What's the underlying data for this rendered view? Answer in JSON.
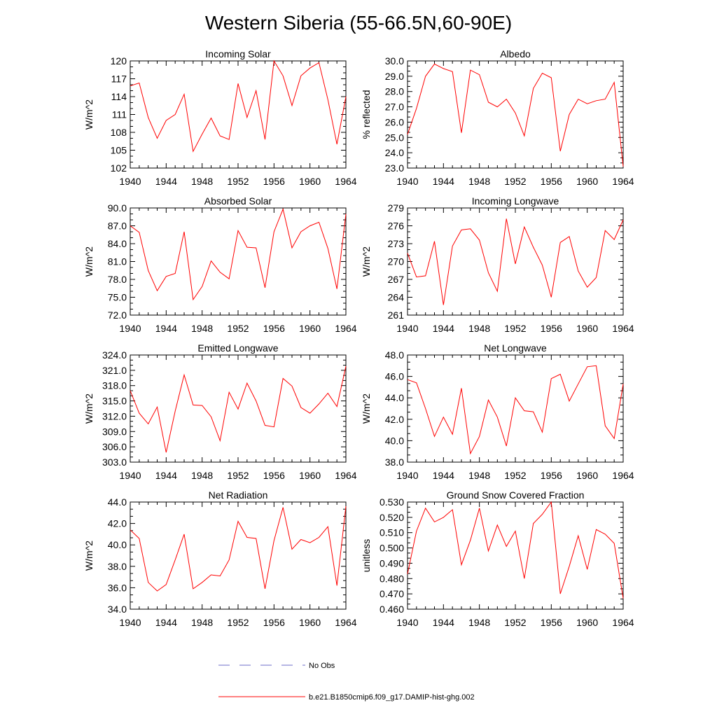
{
  "figure": {
    "title": "Western Siberia (55-66.5N,60-90E)",
    "legend": [
      {
        "label": "No Obs",
        "color": "#6c6cc8",
        "dashed": true
      },
      {
        "label": "b.e21.B1850cmip6.f09_g17.DAMIP-hist-ghg.002",
        "color": "#ff0000",
        "dashed": false
      }
    ]
  },
  "chart_data": [
    {
      "type": "line",
      "title": "Incoming Solar",
      "ylabel": "W/m^2",
      "xlim": [
        1940,
        1964
      ],
      "ylim": [
        102,
        120
      ],
      "xticks": [
        "1940",
        "1944",
        "1948",
        "1952",
        "1956",
        "1960",
        "1964"
      ],
      "yticks": [
        "102",
        "105",
        "108",
        "111",
        "114",
        "117",
        "120"
      ],
      "series": [
        {
          "name": "b.e21.B1850cmip6.f09_g17.DAMIP-hist-ghg.002",
          "x": [
            1940,
            1941,
            1942,
            1943,
            1944,
            1945,
            1946,
            1947,
            1948,
            1949,
            1950,
            1951,
            1952,
            1953,
            1954,
            1955,
            1956,
            1957,
            1958,
            1959,
            1960,
            1961,
            1962,
            1963,
            1964
          ],
          "values": [
            115.8,
            116.3,
            110.5,
            107.0,
            110.0,
            111.0,
            114.4,
            104.8,
            107.7,
            110.4,
            107.4,
            106.8,
            116.2,
            110.5,
            115.0,
            106.8,
            120.0,
            117.5,
            112.5,
            117.5,
            118.8,
            119.7,
            113.5,
            106.0,
            114.0
          ]
        }
      ]
    },
    {
      "type": "line",
      "title": "Albedo",
      "ylabel": "% reflected",
      "xlim": [
        1940,
        1964
      ],
      "ylim": [
        23.0,
        30.0
      ],
      "xticks": [
        "1940",
        "1944",
        "1948",
        "1952",
        "1956",
        "1960",
        "1964"
      ],
      "yticks": [
        "23.0",
        "24.0",
        "25.0",
        "26.0",
        "27.0",
        "28.0",
        "29.0",
        "30.0"
      ],
      "series": [
        {
          "name": "b.e21.B1850cmip6.f09_g17.DAMIP-hist-ghg.002",
          "x": [
            1940,
            1941,
            1942,
            1943,
            1944,
            1945,
            1946,
            1947,
            1948,
            1949,
            1950,
            1951,
            1952,
            1953,
            1954,
            1955,
            1956,
            1957,
            1958,
            1959,
            1960,
            1961,
            1962,
            1963,
            1964
          ],
          "values": [
            25.2,
            26.9,
            29.0,
            29.8,
            29.5,
            29.3,
            25.3,
            29.4,
            29.1,
            27.3,
            27.0,
            27.5,
            26.6,
            25.1,
            28.2,
            29.2,
            28.9,
            24.1,
            26.5,
            27.5,
            27.2,
            27.4,
            27.5,
            28.6,
            23.1
          ]
        }
      ]
    },
    {
      "type": "line",
      "title": "Absorbed Solar",
      "ylabel": "W/m^2",
      "xlim": [
        1940,
        1964
      ],
      "ylim": [
        72.0,
        90.0
      ],
      "xticks": [
        "1940",
        "1944",
        "1948",
        "1952",
        "1956",
        "1960",
        "1964"
      ],
      "yticks": [
        "72.0",
        "75.0",
        "78.0",
        "81.0",
        "84.0",
        "87.0",
        "90.0"
      ],
      "series": [
        {
          "name": "b.e21.B1850cmip6.f09_g17.DAMIP-hist-ghg.002",
          "x": [
            1940,
            1941,
            1942,
            1943,
            1944,
            1945,
            1946,
            1947,
            1948,
            1949,
            1950,
            1951,
            1952,
            1953,
            1954,
            1955,
            1956,
            1957,
            1958,
            1959,
            1960,
            1961,
            1962,
            1963,
            1964
          ],
          "values": [
            87.0,
            85.9,
            79.5,
            76.1,
            78.5,
            79.0,
            86.0,
            74.6,
            76.8,
            81.1,
            79.2,
            78.1,
            86.2,
            83.4,
            83.3,
            76.6,
            86.0,
            89.8,
            83.3,
            86.0,
            87.0,
            87.6,
            83.2,
            76.4,
            89.0
          ]
        }
      ]
    },
    {
      "type": "line",
      "title": "Incoming Longwave",
      "ylabel": "W/m^2",
      "xlim": [
        1940,
        1964
      ],
      "ylim": [
        261,
        279
      ],
      "xticks": [
        "1940",
        "1944",
        "1948",
        "1952",
        "1956",
        "1960",
        "1964"
      ],
      "yticks": [
        "261",
        "264",
        "267",
        "270",
        "273",
        "276",
        "279"
      ],
      "series": [
        {
          "name": "b.e21.B1850cmip6.f09_g17.DAMIP-hist-ghg.002",
          "x": [
            1940,
            1941,
            1942,
            1943,
            1944,
            1945,
            1946,
            1947,
            1948,
            1949,
            1950,
            1951,
            1952,
            1953,
            1954,
            1955,
            1956,
            1957,
            1958,
            1959,
            1960,
            1961,
            1962,
            1963,
            1964
          ],
          "values": [
            271.4,
            267.4,
            267.6,
            273.4,
            262.7,
            272.6,
            275.3,
            275.5,
            273.6,
            268.1,
            265.0,
            277.2,
            269.6,
            275.8,
            272.4,
            269.4,
            264.0,
            273.2,
            274.2,
            268.4,
            265.7,
            267.3,
            275.2,
            273.7,
            277.0
          ]
        }
      ]
    },
    {
      "type": "line",
      "title": "Emitted Longwave",
      "ylabel": "W/m^2",
      "xlim": [
        1940,
        1964
      ],
      "ylim": [
        303.0,
        324.0
      ],
      "xticks": [
        "1940",
        "1944",
        "1948",
        "1952",
        "1956",
        "1960",
        "1964"
      ],
      "yticks": [
        "303.0",
        "306.0",
        "309.0",
        "312.0",
        "315.0",
        "318.0",
        "321.0",
        "324.0"
      ],
      "series": [
        {
          "name": "b.e21.B1850cmip6.f09_g17.DAMIP-hist-ghg.002",
          "x": [
            1940,
            1941,
            1942,
            1943,
            1944,
            1945,
            1946,
            1947,
            1948,
            1949,
            1950,
            1951,
            1952,
            1953,
            1954,
            1955,
            1956,
            1957,
            1958,
            1959,
            1960,
            1961,
            1962,
            1963,
            1964
          ],
          "values": [
            317.0,
            312.6,
            310.5,
            313.8,
            304.9,
            313.0,
            320.1,
            314.2,
            314.1,
            311.9,
            307.2,
            316.7,
            313.4,
            318.5,
            315.0,
            310.2,
            309.9,
            319.4,
            317.9,
            313.7,
            312.6,
            314.4,
            316.5,
            313.9,
            321.8
          ]
        }
      ]
    },
    {
      "type": "line",
      "title": "Net Longwave",
      "ylabel": "W/m^2",
      "xlim": [
        1940,
        1964
      ],
      "ylim": [
        38.0,
        48.0
      ],
      "xticks": [
        "1940",
        "1944",
        "1948",
        "1952",
        "1956",
        "1960",
        "1964"
      ],
      "yticks": [
        "38.0",
        "40.0",
        "42.0",
        "44.0",
        "46.0",
        "48.0"
      ],
      "series": [
        {
          "name": "b.e21.B1850cmip6.f09_g17.DAMIP-hist-ghg.002",
          "x": [
            1940,
            1941,
            1942,
            1943,
            1944,
            1945,
            1946,
            1947,
            1948,
            1949,
            1950,
            1951,
            1952,
            1953,
            1954,
            1955,
            1956,
            1957,
            1958,
            1959,
            1960,
            1961,
            1962,
            1963,
            1964
          ],
          "values": [
            45.7,
            45.4,
            43.0,
            40.4,
            42.2,
            40.6,
            44.9,
            38.8,
            40.4,
            43.8,
            42.2,
            39.5,
            44.0,
            42.8,
            42.7,
            40.8,
            45.8,
            46.2,
            43.7,
            45.3,
            46.9,
            47.0,
            41.4,
            40.2,
            45.3
          ]
        }
      ]
    },
    {
      "type": "line",
      "title": "Net Radiation",
      "ylabel": "W/m^2",
      "xlim": [
        1940,
        1964
      ],
      "ylim": [
        34.0,
        44.0
      ],
      "xticks": [
        "1940",
        "1944",
        "1948",
        "1952",
        "1956",
        "1960",
        "1964"
      ],
      "yticks": [
        "34.0",
        "36.0",
        "38.0",
        "40.0",
        "42.0",
        "44.0"
      ],
      "series": [
        {
          "name": "b.e21.B1850cmip6.f09_g17.DAMIP-hist-ghg.002",
          "x": [
            1940,
            1941,
            1942,
            1943,
            1944,
            1945,
            1946,
            1947,
            1948,
            1949,
            1950,
            1951,
            1952,
            1953,
            1954,
            1955,
            1956,
            1957,
            1958,
            1959,
            1960,
            1961,
            1962,
            1963,
            1964
          ],
          "values": [
            41.4,
            40.6,
            36.5,
            35.7,
            36.3,
            38.6,
            41.0,
            35.9,
            36.5,
            37.2,
            37.1,
            38.6,
            42.2,
            40.7,
            40.6,
            35.9,
            40.4,
            43.5,
            39.6,
            40.5,
            40.2,
            40.7,
            41.7,
            36.2,
            43.6
          ]
        }
      ]
    },
    {
      "type": "line",
      "title": "Ground Snow Covered Fraction",
      "ylabel": "unitless",
      "xlim": [
        1940,
        1964
      ],
      "ylim": [
        0.46,
        0.53
      ],
      "xticks": [
        "1940",
        "1944",
        "1948",
        "1952",
        "1956",
        "1960",
        "1964"
      ],
      "yticks": [
        "0.460",
        "0.470",
        "0.480",
        "0.490",
        "0.500",
        "0.510",
        "0.520",
        "0.530"
      ],
      "series": [
        {
          "name": "b.e21.B1850cmip6.f09_g17.DAMIP-hist-ghg.002",
          "x": [
            1940,
            1941,
            1942,
            1943,
            1944,
            1945,
            1946,
            1947,
            1948,
            1949,
            1950,
            1951,
            1952,
            1953,
            1954,
            1955,
            1956,
            1957,
            1958,
            1959,
            1960,
            1961,
            1962,
            1963,
            1964
          ],
          "values": [
            0.483,
            0.511,
            0.526,
            0.517,
            0.52,
            0.525,
            0.489,
            0.505,
            0.526,
            0.498,
            0.515,
            0.501,
            0.511,
            0.48,
            0.516,
            0.522,
            0.53,
            0.47,
            0.488,
            0.508,
            0.486,
            0.512,
            0.509,
            0.503,
            0.467
          ]
        }
      ]
    }
  ]
}
